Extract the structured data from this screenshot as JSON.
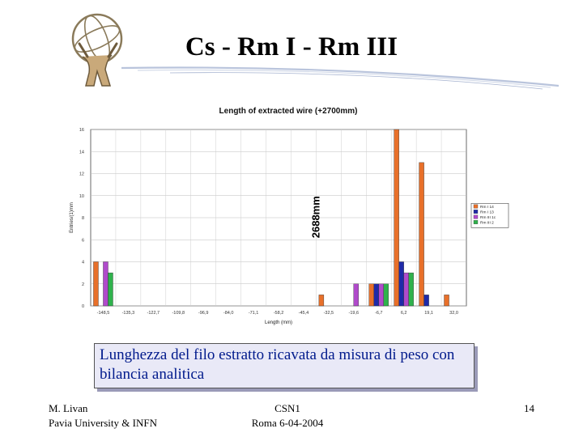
{
  "slide": {
    "title": "Cs - Rm I - Rm III"
  },
  "chart_data": {
    "type": "bar",
    "title": "Length of extracted wire (+2700mm)",
    "xlabel": "Length (mm)",
    "ylabel": "Entries/(1)mm",
    "ylim": [
      0,
      16
    ],
    "yticks": [
      0,
      2,
      4,
      6,
      8,
      10,
      12,
      14,
      16
    ],
    "ytick_labels": [
      "0",
      "2",
      "4",
      "6",
      "8",
      "10",
      "12",
      "14",
      "16"
    ],
    "grid": true,
    "legend_position": "right",
    "categories": [
      "-148,5",
      "-135,3",
      "-122,7",
      "-109,8",
      "-96,9",
      "-84,0",
      "-71,1",
      "-58,2",
      "-45,4",
      "-32,5",
      "-19,6",
      "-6,7",
      "6,2",
      "19,1",
      "32,0"
    ],
    "series": [
      {
        "name": "Rm I 14",
        "color": "#e8702a",
        "values": [
          4,
          0,
          0,
          0,
          0,
          0,
          0,
          0,
          0,
          1,
          0,
          2,
          16,
          13,
          1
        ]
      },
      {
        "name": "Rm I 13",
        "color": "#1f2aa8",
        "values": [
          0,
          0,
          0,
          0,
          0,
          0,
          0,
          0,
          0,
          0,
          0,
          2,
          4,
          1,
          0
        ]
      },
      {
        "name": "Rm III 1c",
        "color": "#b04acb",
        "values": [
          4,
          0,
          0,
          0,
          0,
          0,
          0,
          0,
          0,
          0,
          2,
          2,
          3,
          0,
          0
        ]
      },
      {
        "name": "Rm III 2",
        "color": "#2fb24c",
        "values": [
          3,
          0,
          0,
          0,
          0,
          0,
          0,
          0,
          0,
          0,
          0,
          2,
          3,
          0,
          0
        ]
      }
    ],
    "annotations": [
      {
        "text": "2688mm"
      }
    ]
  },
  "caption": {
    "text": "Lunghezza del filo estratto ricavata da misura di peso con bilancia analitica"
  },
  "footer": {
    "author": "M. Livan",
    "affiliation": "Pavia University & INFN",
    "event": "CSN1",
    "place_date": "Roma 6-04-2004",
    "page": "14"
  }
}
